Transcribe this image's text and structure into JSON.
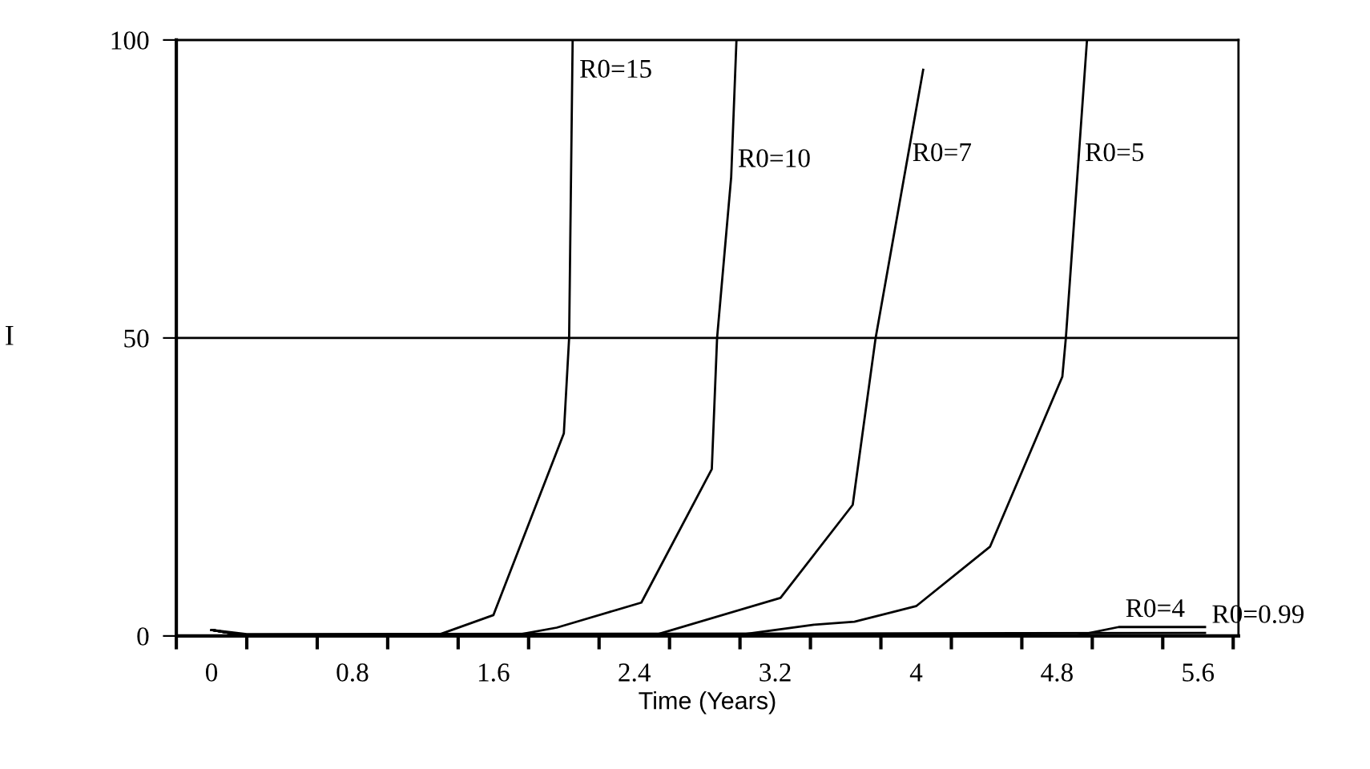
{
  "chart_data": {
    "type": "line",
    "xlabel": "Time (Years)",
    "ylabel": "I",
    "xlim": [
      -0.2,
      5.83
    ],
    "ylim": [
      0,
      100
    ],
    "xticks": [
      {
        "value": -0.2,
        "label": null
      },
      0,
      {
        "value": 0.2,
        "label": null
      },
      {
        "value": 0.6,
        "label": null
      },
      0.8,
      {
        "value": 1.0,
        "label": null
      },
      {
        "value": 1.4,
        "label": null
      },
      1.6,
      {
        "value": 1.8,
        "label": null
      },
      {
        "value": 2.2,
        "label": null
      },
      2.4,
      {
        "value": 2.6,
        "label": null
      },
      {
        "value": 3.0,
        "label": null
      },
      3.2,
      {
        "value": 3.4,
        "label": null
      },
      {
        "value": 3.8,
        "label": null
      },
      4,
      {
        "value": 4.2,
        "label": null
      },
      {
        "value": 4.6,
        "label": null
      },
      4.8,
      {
        "value": 5.0,
        "label": null
      },
      {
        "value": 5.4,
        "label": null
      },
      5.6,
      {
        "value": 5.8,
        "label": null
      }
    ],
    "yticks": [
      0,
      50,
      100
    ],
    "grid": "y",
    "legend": false,
    "marker": "none",
    "line_style": "solid",
    "series": [
      {
        "color": "#000000",
        "x": [
          0,
          0.2,
          1.27,
          1.6,
          2.0,
          2.03,
          2.05
        ],
        "values": [
          1,
          0,
          0,
          3.5,
          34,
          50,
          100
        ]
      },
      {
        "color": "#000000",
        "x": [
          0,
          0.2,
          1.7,
          1.96,
          2.44,
          2.84,
          2.87,
          2.95,
          2.98
        ],
        "values": [
          1,
          0,
          0,
          1.4,
          5.6,
          28,
          50,
          77,
          100
        ]
      },
      {
        "color": "#000000",
        "x": [
          0,
          0.2,
          2.5,
          3.23,
          3.64,
          3.77,
          4.04
        ],
        "values": [
          1,
          0,
          0,
          6.4,
          22,
          50,
          95
        ]
      },
      {
        "color": "#000000",
        "x": [
          0,
          0.2,
          2.95,
          3.42,
          3.65,
          4.0,
          4.42,
          4.83,
          4.85,
          4.97
        ],
        "values": [
          1,
          0,
          0,
          1.9,
          2.4,
          5,
          15,
          43.5,
          50,
          100
        ]
      },
      {
        "color": "#000000",
        "x": [
          0,
          0.2,
          4.9,
          5.15,
          5.64
        ],
        "values": [
          1,
          0,
          0,
          1.5,
          1.5
        ]
      },
      {
        "color": "#000000",
        "x": [
          0,
          0.2,
          5.64
        ],
        "values": [
          1,
          0.3,
          0.5
        ]
      }
    ],
    "annotations": [
      {
        "text": "R0=15",
        "x": 2.05,
        "y": 92
      },
      {
        "text": "R0=10",
        "x": 2.95,
        "y": 77
      },
      {
        "text": "R0=7",
        "x": 3.94,
        "y": 78
      },
      {
        "text": "R0=5",
        "x": 4.92,
        "y": 78
      },
      {
        "text": "R0=4",
        "x": 5.15,
        "y": 1.5
      },
      {
        "text": "R0=0.99",
        "x": 5.64,
        "y": 0.5
      }
    ]
  }
}
